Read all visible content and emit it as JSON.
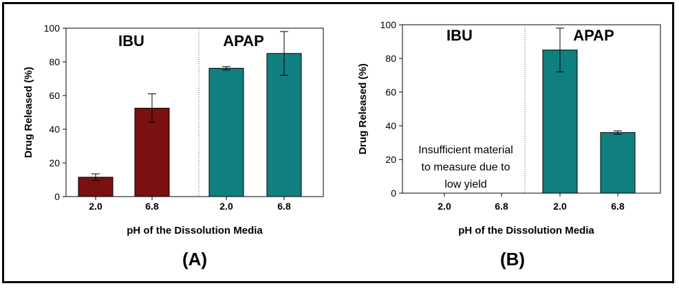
{
  "chart_data": [
    {
      "type": "bar",
      "panel_label": "(A)",
      "ylabel": "Drug Released (%)",
      "xlabel": "pH of the Dissolution Media",
      "ylim": [
        0,
        100
      ],
      "yticks": [
        0,
        20,
        40,
        60,
        80,
        100
      ],
      "categories": [
        "2.0",
        "6.8",
        "2.0",
        "6.8"
      ],
      "groups": [
        {
          "name": "IBU",
          "category_indices": [
            0,
            1
          ],
          "color": "#7b1010"
        },
        {
          "name": "APAP",
          "category_indices": [
            2,
            3
          ],
          "color": "#0f7f7f"
        }
      ],
      "values": [
        11.5,
        52.5,
        76.2,
        85.0
      ],
      "errors": [
        2.0,
        8.5,
        1.0,
        13.0
      ],
      "annotation": ""
    },
    {
      "type": "bar",
      "panel_label": "(B)",
      "ylabel": "Drug Released (%)",
      "xlabel": "pH of the Dissolution Media",
      "ylim": [
        0,
        100
      ],
      "yticks": [
        0,
        20,
        40,
        60,
        80,
        100
      ],
      "categories": [
        "2.0",
        "6.8",
        "2.0",
        "6.8"
      ],
      "groups": [
        {
          "name": "IBU",
          "category_indices": [
            0,
            1
          ],
          "color": "#7b1010"
        },
        {
          "name": "APAP",
          "category_indices": [
            2,
            3
          ],
          "color": "#0f7f7f"
        }
      ],
      "values": [
        null,
        null,
        85.0,
        36.0
      ],
      "errors": [
        null,
        null,
        13.0,
        1.0
      ],
      "annotation": [
        "Insufficient material",
        "to measure due to",
        "low yield"
      ]
    }
  ]
}
